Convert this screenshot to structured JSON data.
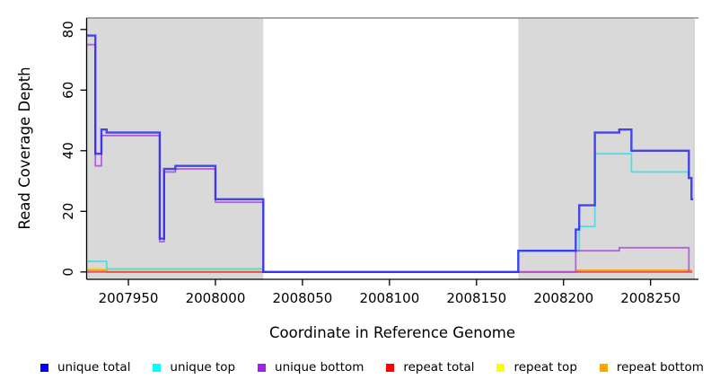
{
  "chart_data": {
    "type": "line",
    "subtype": "step-coverage",
    "title": "",
    "xlabel": "Coordinate in Reference Genome",
    "ylabel": "Read Coverage Depth",
    "xlim": [
      2007926,
      2008277.5
    ],
    "ylim": [
      0,
      80
    ],
    "x_ticks": [
      2007950,
      2008000,
      2008050,
      2008100,
      2008150,
      2008200,
      2008250
    ],
    "y_ticks": [
      0,
      20,
      40,
      60,
      80
    ],
    "grid": false,
    "legend_position": "bottom",
    "frame_color": "#8C8C8C",
    "axis_color": "#000000",
    "shaded_regions": [
      {
        "x0": 2007926,
        "x1": 2008027.5,
        "color": "#D9D9D9",
        "name": "left-shaded-region"
      },
      {
        "x0": 2008174,
        "x1": 2008275,
        "color": "#D9D9D9",
        "name": "right-shaded-region"
      }
    ],
    "series": [
      {
        "name": "repeat top",
        "swatch": "#FFFF00",
        "stroke": "#E0E000",
        "opacity": 0.75,
        "width": 1.8,
        "points": [
          [
            2007926,
            1
          ],
          [
            2008027.5,
            1
          ],
          [
            2008027.5,
            0
          ],
          [
            2008274,
            0
          ]
        ]
      },
      {
        "name": "repeat bottom",
        "swatch": "#FFA500",
        "stroke": "#FF9900",
        "opacity": 0.9,
        "width": 2,
        "points": [
          [
            2007926,
            0.5
          ],
          [
            2007937.5,
            0.5
          ],
          [
            2007937.5,
            0
          ],
          [
            2008208,
            0
          ],
          [
            2008208,
            0.5
          ],
          [
            2008274,
            0.5
          ]
        ]
      },
      {
        "name": "repeat total",
        "swatch": "#FF0000",
        "stroke": "#E03050",
        "opacity": 0.75,
        "width": 1.8,
        "points": [
          [
            2007926,
            0
          ],
          [
            2008274,
            0
          ]
        ]
      },
      {
        "name": "unique top",
        "swatch": "#00FFFF",
        "stroke": "#30DDE8",
        "opacity": 0.8,
        "width": 1.8,
        "points": [
          [
            2007926,
            3.5
          ],
          [
            2007937.5,
            3.5
          ],
          [
            2007937.5,
            1
          ],
          [
            2008027.5,
            1
          ],
          [
            2008027.5,
            0
          ],
          [
            2008174,
            0
          ],
          [
            2008174,
            7
          ],
          [
            2008209,
            7
          ],
          [
            2008209,
            15
          ],
          [
            2008218,
            15
          ],
          [
            2008218,
            39
          ],
          [
            2008239,
            39
          ],
          [
            2008239,
            33
          ],
          [
            2008272,
            33
          ],
          [
            2008272,
            31
          ],
          [
            2008274,
            31
          ]
        ]
      },
      {
        "name": "unique bottom",
        "swatch": "#A020F0",
        "stroke": "#AC4CDE",
        "opacity": 0.85,
        "width": 1.8,
        "points": [
          [
            2007926,
            75
          ],
          [
            2007931,
            75
          ],
          [
            2007931,
            35
          ],
          [
            2007934.5,
            35
          ],
          [
            2007934.5,
            45
          ],
          [
            2007968,
            45
          ],
          [
            2007968,
            10
          ],
          [
            2007970.5,
            10
          ],
          [
            2007970.5,
            33
          ],
          [
            2007977,
            33
          ],
          [
            2007977,
            34
          ],
          [
            2008000,
            34
          ],
          [
            2008000,
            23
          ],
          [
            2008027.5,
            23
          ],
          [
            2008027.5,
            0
          ],
          [
            2008207,
            0
          ],
          [
            2008207,
            7
          ],
          [
            2008232,
            7
          ],
          [
            2008232,
            8
          ],
          [
            2008272,
            8
          ],
          [
            2008272,
            0
          ]
        ]
      },
      {
        "name": "unique total",
        "swatch": "#0000FF",
        "stroke": "#2A2AF0",
        "opacity": 0.85,
        "width": 2.4,
        "points": [
          [
            2007926,
            78
          ],
          [
            2007931,
            78
          ],
          [
            2007931,
            39
          ],
          [
            2007934.5,
            39
          ],
          [
            2007934.5,
            47
          ],
          [
            2007937.5,
            47
          ],
          [
            2007937.5,
            46
          ],
          [
            2007968,
            46
          ],
          [
            2007968,
            11
          ],
          [
            2007970.5,
            11
          ],
          [
            2007970.5,
            34
          ],
          [
            2007977,
            34
          ],
          [
            2007977,
            35
          ],
          [
            2008000,
            35
          ],
          [
            2008000,
            24
          ],
          [
            2008027.5,
            24
          ],
          [
            2008027.5,
            0
          ],
          [
            2008174,
            0
          ],
          [
            2008174,
            7
          ],
          [
            2008207,
            7
          ],
          [
            2008207,
            14
          ],
          [
            2008209,
            14
          ],
          [
            2008209,
            22
          ],
          [
            2008218,
            22
          ],
          [
            2008218,
            46
          ],
          [
            2008232,
            46
          ],
          [
            2008232,
            47
          ],
          [
            2008239,
            47
          ],
          [
            2008239,
            40
          ],
          [
            2008272,
            40
          ],
          [
            2008272,
            31
          ],
          [
            2008273.5,
            31
          ],
          [
            2008273.5,
            24
          ],
          [
            2008274.5,
            24
          ]
        ]
      }
    ],
    "legend": [
      {
        "label": "unique total",
        "swatch": "#0000FF"
      },
      {
        "label": "unique top",
        "swatch": "#00FFFF"
      },
      {
        "label": "unique bottom",
        "swatch": "#A020F0"
      },
      {
        "label": "repeat total",
        "swatch": "#FF0000"
      },
      {
        "label": "repeat top",
        "swatch": "#FFFF00"
      },
      {
        "label": "repeat bottom",
        "swatch": "#FFA500"
      }
    ]
  }
}
